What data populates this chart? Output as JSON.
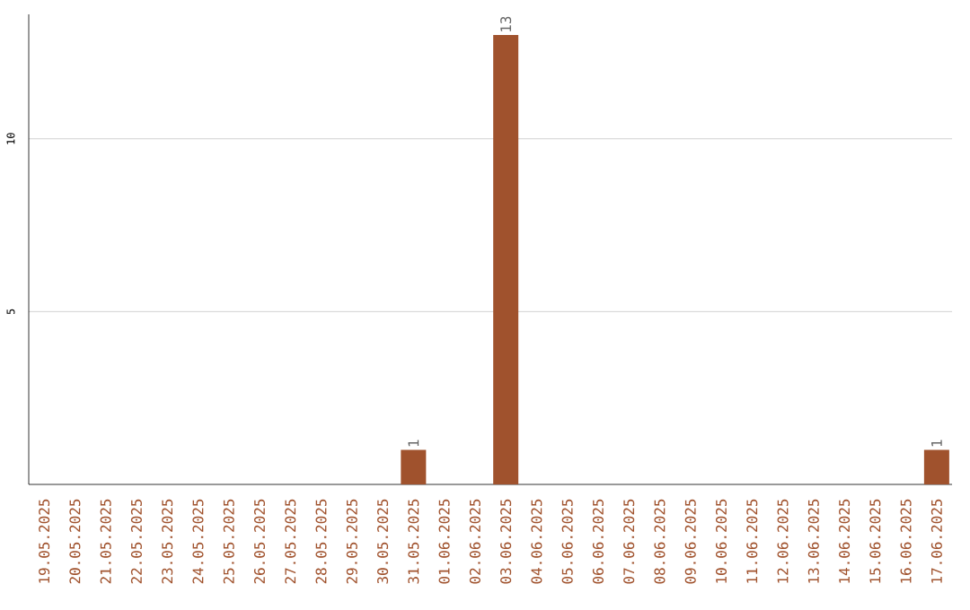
{
  "chart_data": {
    "type": "bar",
    "categories": [
      "19.05.2025",
      "20.05.2025",
      "21.05.2025",
      "22.05.2025",
      "23.05.2025",
      "24.05.2025",
      "25.05.2025",
      "26.05.2025",
      "27.05.2025",
      "28.05.2025",
      "29.05.2025",
      "30.05.2025",
      "31.05.2025",
      "01.06.2025",
      "02.06.2025",
      "03.06.2025",
      "04.06.2025",
      "05.06.2025",
      "06.06.2025",
      "07.06.2025",
      "08.06.2025",
      "09.06.2025",
      "10.06.2025",
      "11.06.2025",
      "12.06.2025",
      "13.06.2025",
      "14.06.2025",
      "15.06.2025",
      "16.06.2025",
      "17.06.2025"
    ],
    "values": [
      0,
      0,
      0,
      0,
      0,
      0,
      0,
      0,
      0,
      0,
      0,
      0,
      1,
      0,
      0,
      13,
      0,
      0,
      0,
      0,
      0,
      0,
      0,
      0,
      0,
      0,
      0,
      0,
      0,
      1
    ],
    "value_labels": [
      null,
      null,
      null,
      null,
      null,
      null,
      null,
      null,
      null,
      null,
      null,
      null,
      "1",
      null,
      null,
      "13",
      null,
      null,
      null,
      null,
      null,
      null,
      null,
      null,
      null,
      null,
      null,
      null,
      null,
      "1"
    ],
    "color": "#a0522d",
    "ylim": [
      0,
      13.6
    ],
    "yticks": [
      5,
      10
    ],
    "grid": "y"
  }
}
